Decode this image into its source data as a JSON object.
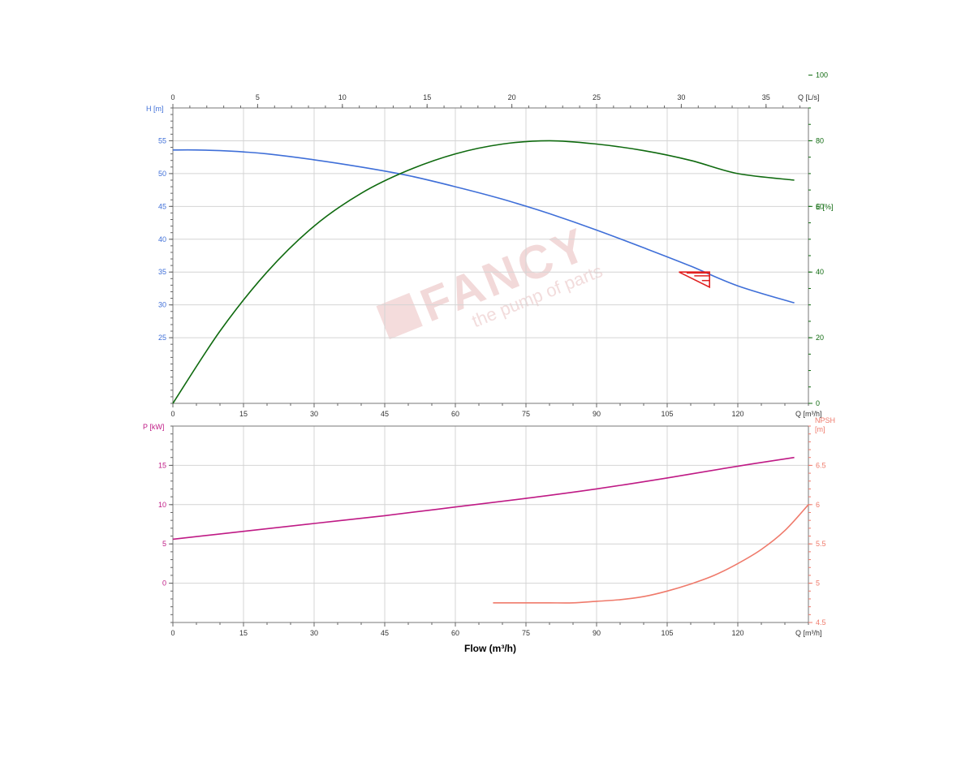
{
  "watermark": {
    "brand": "FANCY",
    "tagline": "the pump of parts"
  },
  "colors": {
    "head": "#3f6fd8",
    "efficiency": "#0f6a0f",
    "power": "#bf1a85",
    "npsh": "#ef7a6b",
    "duty_marker": "#e02020",
    "grid": "#d4d4d4",
    "axis": "#666666",
    "tick_text": "#333333"
  },
  "chart_data": [
    {
      "type": "line",
      "panel": "top",
      "x_axis_bottom": {
        "unit_label": "Q [m³/h]",
        "ticks": [
          "0",
          "15",
          "30",
          "45",
          "60",
          "75",
          "90",
          "105",
          "120"
        ],
        "range": [
          0,
          135
        ]
      },
      "x_axis_top": {
        "unit_label": "Q [L/s]",
        "ticks": [
          "0",
          "5",
          "10",
          "15",
          "20",
          "25",
          "30",
          "35"
        ]
      },
      "y_axis_left": {
        "label": "H [m]",
        "ticks": [
          "25",
          "30",
          "35",
          "40",
          "45",
          "50",
          "55"
        ],
        "range": [
          15,
          60
        ]
      },
      "y_axis_right": {
        "label": "E [%]",
        "ticks": [
          "0",
          "20",
          "40",
          "60",
          "80",
          "100"
        ],
        "range": [
          0,
          90
        ]
      },
      "grid": true,
      "series": [
        {
          "name": "H [m]",
          "axis": "left",
          "color_key": "head",
          "x": [
            0,
            5,
            10,
            15,
            20,
            30,
            40,
            50,
            60,
            70,
            80,
            90,
            100,
            110,
            120,
            132
          ],
          "y": [
            53.6,
            53.6,
            53.5,
            53.3,
            53.0,
            52.1,
            51.0,
            49.7,
            48.0,
            46.1,
            43.9,
            41.4,
            38.7,
            35.9,
            32.9,
            30.3
          ]
        },
        {
          "name": "E [%]",
          "axis": "right",
          "color_key": "efficiency",
          "x": [
            0,
            10,
            20,
            30,
            40,
            50,
            60,
            70,
            80,
            90,
            100,
            110,
            120,
            132
          ],
          "y": [
            0,
            22,
            40,
            54,
            64,
            71,
            76,
            79,
            80,
            79,
            77,
            74,
            70,
            68
          ]
        },
        {
          "name": "duty point",
          "axis": "left",
          "color_key": "duty_marker",
          "x": [
            107.5,
            114,
            114,
            107.5
          ],
          "y": [
            35.0,
            35.0,
            32.7,
            35.0
          ]
        }
      ]
    },
    {
      "type": "line",
      "panel": "bottom",
      "x_axis_bottom": {
        "unit_label": "Q [m³/h]",
        "ticks": [
          "0",
          "15",
          "30",
          "45",
          "60",
          "75",
          "90",
          "105",
          "120"
        ],
        "range": [
          0,
          135
        ]
      },
      "x_label": "Flow (m³/h)",
      "y_axis_left": {
        "label": "P [kW]",
        "ticks": [
          "0",
          "5",
          "10",
          "15"
        ],
        "range": [
          -5,
          20
        ]
      },
      "y_axis_right": {
        "label_line1": "NPSH",
        "label_line2": "[m]",
        "ticks": [
          "4.5",
          "5",
          "5.5",
          "6",
          "6.5"
        ],
        "range": [
          4.5,
          7.0
        ]
      },
      "grid": true,
      "series": [
        {
          "name": "P [kW]",
          "axis": "left",
          "color_key": "power",
          "x": [
            0,
            15,
            30,
            45,
            60,
            75,
            90,
            105,
            120,
            132
          ],
          "y": [
            5.6,
            6.6,
            7.6,
            8.6,
            9.7,
            10.8,
            12.0,
            13.4,
            14.9,
            16.0
          ]
        },
        {
          "name": "NPSH [m]",
          "axis": "right",
          "color_key": "npsh",
          "x": [
            68,
            75,
            80,
            85,
            90,
            95,
            100,
            105,
            110,
            115,
            120,
            125,
            130,
            135
          ],
          "y": [
            4.75,
            4.75,
            4.75,
            4.75,
            4.77,
            4.79,
            4.83,
            4.9,
            4.99,
            5.1,
            5.25,
            5.43,
            5.67,
            6.0
          ]
        }
      ]
    }
  ]
}
